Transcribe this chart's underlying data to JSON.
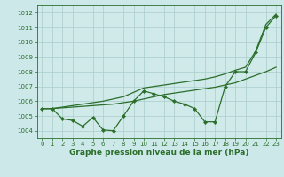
{
  "background_color": "#cce8e8",
  "plot_bg_color": "#d0eaea",
  "grid_color": "#aacccc",
  "line_color": "#2a6e2a",
  "marker_color": "#2a6e2a",
  "xlabel": "Graphe pression niveau de la mer (hPa)",
  "xlabel_fontsize": 6.5,
  "xlabel_bold": true,
  "xlim": [
    -0.5,
    23.5
  ],
  "ylim": [
    1003.5,
    1012.5
  ],
  "yticks": [
    1004,
    1005,
    1006,
    1007,
    1008,
    1009,
    1010,
    1011,
    1012
  ],
  "xticks": [
    0,
    1,
    2,
    3,
    4,
    5,
    6,
    7,
    8,
    9,
    10,
    11,
    12,
    13,
    14,
    15,
    16,
    17,
    18,
    19,
    20,
    21,
    22,
    23
  ],
  "tick_fontsize": 5.0,
  "series1": [
    1005.5,
    1005.5,
    1004.8,
    1004.7,
    1004.3,
    1004.9,
    1004.05,
    1004.0,
    1005.0,
    1006.0,
    1006.7,
    1006.5,
    1006.3,
    1006.0,
    1005.8,
    1005.5,
    1004.6,
    1004.6,
    1007.0,
    1008.0,
    1008.0,
    1009.3,
    1011.0,
    1011.8
  ],
  "series2": [
    1005.5,
    1005.5,
    1005.55,
    1005.6,
    1005.65,
    1005.7,
    1005.75,
    1005.8,
    1005.9,
    1006.0,
    1006.15,
    1006.3,
    1006.45,
    1006.55,
    1006.65,
    1006.75,
    1006.85,
    1006.95,
    1007.1,
    1007.25,
    1007.5,
    1007.75,
    1008.0,
    1008.3
  ],
  "series3": [
    1005.5,
    1005.5,
    1005.6,
    1005.7,
    1005.8,
    1005.9,
    1006.0,
    1006.15,
    1006.3,
    1006.6,
    1006.9,
    1007.0,
    1007.1,
    1007.2,
    1007.3,
    1007.4,
    1007.5,
    1007.65,
    1007.85,
    1008.1,
    1008.3,
    1009.4,
    1011.2,
    1011.9
  ]
}
